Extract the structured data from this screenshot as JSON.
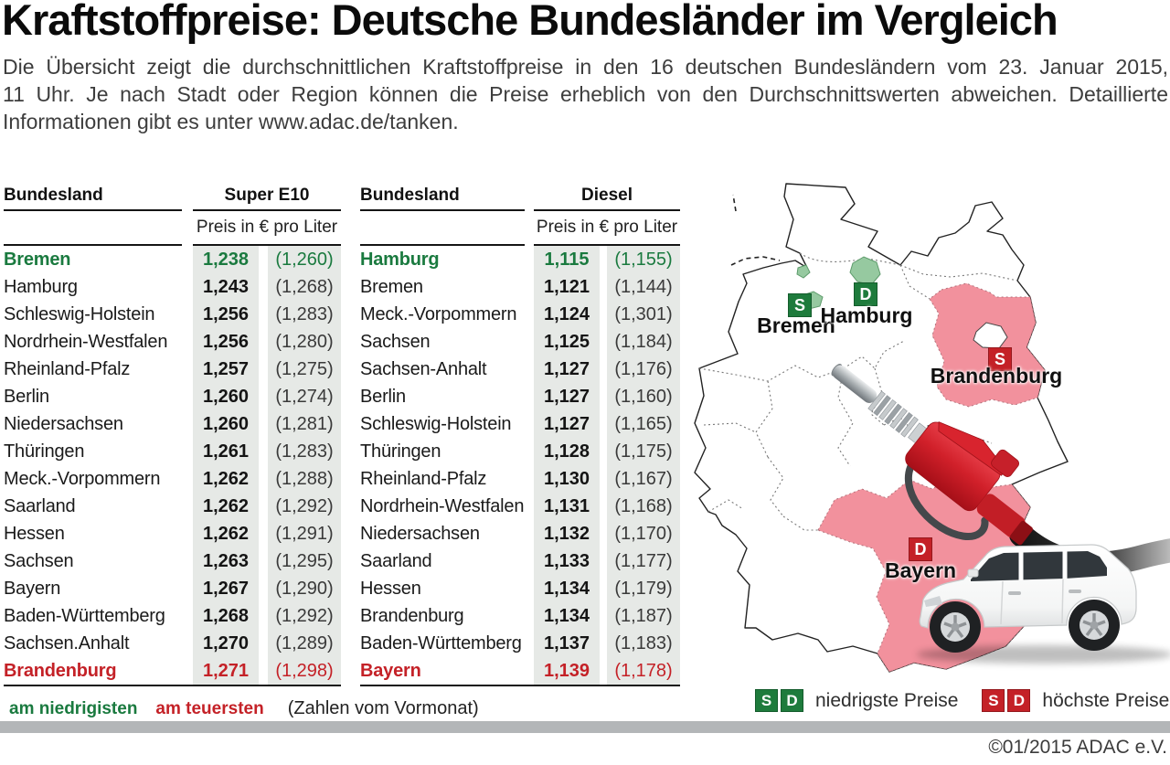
{
  "title": "Kraftstoffpreise: Deutsche Bundesländer im Vergleich",
  "intro_lines": [
    "Die Übersicht zeigt die durchschnittlichen Kraftstoffpreise in den 16 deutschen Bundesländern vom 23. Januar 2015,",
    "11 Uhr. Je nach Stadt oder Region können die Preise erheblich von den Durchschnittswerten abweichen. Detaillierte",
    "Informationen gibt es unter www.adac.de/tanken."
  ],
  "chart_data": [
    {
      "type": "table",
      "col_header": "Bundesland",
      "fuel_header": "Super E10",
      "unit_header": "Preis in € pro Liter",
      "rows": [
        {
          "land": "Bremen",
          "price": "1,238",
          "prev": "(1,260)",
          "h": "low"
        },
        {
          "land": "Hamburg",
          "price": "1,243",
          "prev": "(1,268)",
          "h": ""
        },
        {
          "land": "Schleswig-Holstein",
          "price": "1,256",
          "prev": "(1,283)",
          "h": ""
        },
        {
          "land": "Nordrhein-Westfalen",
          "price": "1,256",
          "prev": "(1,280)",
          "h": ""
        },
        {
          "land": "Rheinland-Pfalz",
          "price": "1,257",
          "prev": "(1,275)",
          "h": ""
        },
        {
          "land": "Berlin",
          "price": "1,260",
          "prev": "(1,274)",
          "h": ""
        },
        {
          "land": "Niedersachsen",
          "price": "1,260",
          "prev": "(1,281)",
          "h": ""
        },
        {
          "land": "Thüringen",
          "price": "1,261",
          "prev": "(1,283)",
          "h": ""
        },
        {
          "land": "Meck.-Vorpommern",
          "price": "1,262",
          "prev": "(1,288)",
          "h": ""
        },
        {
          "land": "Saarland",
          "price": "1,262",
          "prev": "(1,292)",
          "h": ""
        },
        {
          "land": "Hessen",
          "price": "1,262",
          "prev": "(1,291)",
          "h": ""
        },
        {
          "land": "Sachsen",
          "price": "1,263",
          "prev": "(1,295)",
          "h": ""
        },
        {
          "land": "Bayern",
          "price": "1,267",
          "prev": "(1,290)",
          "h": ""
        },
        {
          "land": "Baden-Württemberg",
          "price": "1,268",
          "prev": "(1,292)",
          "h": ""
        },
        {
          "land": "Sachsen.Anhalt",
          "price": "1,270",
          "prev": "(1,289)",
          "h": ""
        },
        {
          "land": "Brandenburg",
          "price": "1,271",
          "prev": "(1,298)",
          "h": "high"
        }
      ]
    },
    {
      "type": "table",
      "col_header": "Bundesland",
      "fuel_header": "Diesel",
      "unit_header": "Preis in € pro Liter",
      "rows": [
        {
          "land": "Hamburg",
          "price": "1,115",
          "prev": "(1,155)",
          "h": "low"
        },
        {
          "land": "Bremen",
          "price": "1,121",
          "prev": "(1,144)",
          "h": ""
        },
        {
          "land": "Meck.-Vorpommern",
          "price": "1,124",
          "prev": "(1,301)",
          "h": ""
        },
        {
          "land": "Sachsen",
          "price": "1,125",
          "prev": "(1,184)",
          "h": ""
        },
        {
          "land": "Sachsen-Anhalt",
          "price": "1,127",
          "prev": "(1,176)",
          "h": ""
        },
        {
          "land": "Berlin",
          "price": "1,127",
          "prev": "(1,160)",
          "h": ""
        },
        {
          "land": "Schleswig-Holstein",
          "price": "1,127",
          "prev": "(1,165)",
          "h": ""
        },
        {
          "land": "Thüringen",
          "price": "1,128",
          "prev": "(1,175)",
          "h": ""
        },
        {
          "land": "Rheinland-Pfalz",
          "price": "1,130",
          "prev": "(1,167)",
          "h": ""
        },
        {
          "land": "Nordrhein-Westfalen",
          "price": "1,131",
          "prev": "(1,168)",
          "h": ""
        },
        {
          "land": "Niedersachsen",
          "price": "1,132",
          "prev": "(1,170)",
          "h": ""
        },
        {
          "land": "Saarland",
          "price": "1,133",
          "prev": "(1,177)",
          "h": ""
        },
        {
          "land": "Hessen",
          "price": "1,134",
          "prev": "(1,179)",
          "h": ""
        },
        {
          "land": "Brandenburg",
          "price": "1,134",
          "prev": "(1,187)",
          "h": ""
        },
        {
          "land": "Baden-Württemberg",
          "price": "1,137",
          "prev": "(1,183)",
          "h": ""
        },
        {
          "land": "Bayern",
          "price": "1,139",
          "prev": "(1,178)",
          "h": "high"
        }
      ]
    }
  ],
  "footnote": {
    "low": "am niedrigisten",
    "high": "am teuersten",
    "note": "(Zahlen vom Vormonat)"
  },
  "map": {
    "states": [
      {
        "name": "Bremen",
        "badge": "S",
        "kind": "low"
      },
      {
        "name": "Hamburg",
        "badge": "D",
        "kind": "low"
      },
      {
        "name": "Brandenburg",
        "badge": "S",
        "kind": "high"
      },
      {
        "name": "Bayern",
        "badge": "D",
        "kind": "high"
      }
    ],
    "legend": {
      "low_badges": [
        "S",
        "D"
      ],
      "low_label": "niedrigste Preise",
      "high_badges": [
        "S",
        "D"
      ],
      "high_label": "höchste Preise"
    }
  },
  "copyright": "©01/2015 ADAC e.V.",
  "colors": {
    "low_green": "#1a7a3f",
    "high_red": "#c42127",
    "state_green": "#96c9a0",
    "state_pink": "#f2919d",
    "cell_bg": "#e6e9e6",
    "bar_gray": "#b3b6b8"
  }
}
